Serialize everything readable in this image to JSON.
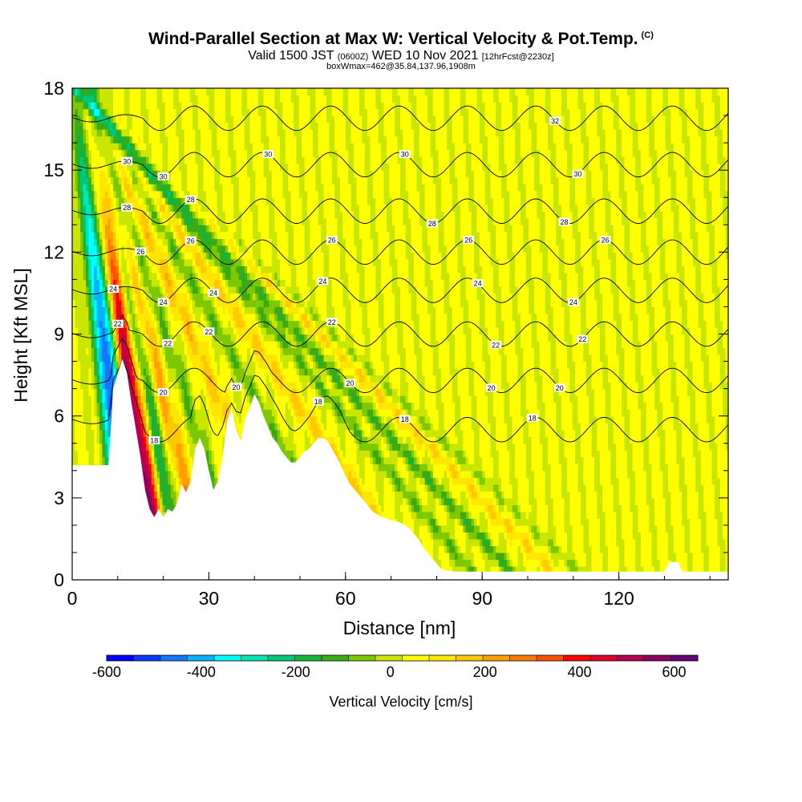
{
  "title": {
    "main": "Wind-Parallel Section at Max W: Vertical Velocity & Pot.Temp.",
    "copyright": "(C)",
    "valid_prefix": "Valid 1500 JST",
    "valid_utc": "(0600Z)",
    "valid_date": "WED 10 Nov 2021",
    "forecast": "[12hrFcst@2230z]",
    "box_info": "boxWmax=462@35.84,137.96,1908m"
  },
  "chart_data": {
    "type": "heatmap",
    "xlabel": "Distance [nm]",
    "ylabel": "Height [Kft MSL]",
    "xlim": [
      0,
      144
    ],
    "ylim": [
      0,
      18
    ],
    "x_ticks": [
      "0",
      "30",
      "60",
      "90",
      "120"
    ],
    "y_ticks": [
      "0",
      "3",
      "6",
      "9",
      "12",
      "15",
      "18"
    ],
    "colorbar": {
      "label": "Vertical Velocity [cm/s]",
      "range": [
        -600,
        650
      ],
      "tick_labels": [
        "-600",
        "-400",
        "-200",
        "0",
        "200",
        "400",
        "600"
      ],
      "colors": [
        "#0000ff",
        "#0a3cff",
        "#1478ff",
        "#00b4ff",
        "#00ffff",
        "#00e6b4",
        "#00c878",
        "#14b43c",
        "#3caa14",
        "#7dc800",
        "#c8e600",
        "#ffff00",
        "#ffe600",
        "#ffc800",
        "#ffa000",
        "#ff7800",
        "#ff5000",
        "#ff0000",
        "#dc0028",
        "#b40050",
        "#8c0064",
        "#640078"
      ]
    },
    "vertical_velocity_features": [
      {
        "name": "strong downdraft",
        "x_base": 13,
        "x_top": 2,
        "value": -600
      },
      {
        "name": "strong updraft",
        "x_base": 19.5,
        "x_top": 2,
        "value": 550
      },
      {
        "name": "moderate descent",
        "x_base": 24,
        "x_top": 4,
        "value": -250
      },
      {
        "name": "weak ascent",
        "x_base": 30,
        "x_top": 3,
        "value": 180
      },
      {
        "name": "weak descent",
        "x_base": 38,
        "x_top": 3,
        "value": -120
      },
      {
        "name": "weak ascent",
        "x_base": 49,
        "x_top": 3,
        "value": 130
      },
      {
        "name": "weak descent",
        "x_base": 62,
        "x_top": 3,
        "value": -120
      },
      {
        "name": "weak ascent",
        "x_base": 76,
        "x_top": 2,
        "value": 120
      },
      {
        "name": "weak descent",
        "x_base": 89,
        "x_top": 1,
        "value": -130
      },
      {
        "name": "weak descent",
        "x_base": 98,
        "x_top": 1,
        "value": -160
      },
      {
        "name": "weak ascent",
        "x_base": 107,
        "x_top": 2,
        "value": 100
      },
      {
        "name": "weak descent",
        "x_base": 113,
        "x_top": 1,
        "value": -80
      }
    ],
    "terrain_kft": {
      "x": [
        0,
        8,
        9,
        11,
        12,
        13,
        14,
        15,
        16,
        17,
        18,
        19,
        20,
        21,
        22,
        23,
        24,
        25,
        26,
        27,
        28,
        29,
        30,
        31,
        32,
        33,
        34,
        35,
        36,
        37,
        38,
        39,
        40,
        41,
        42,
        43,
        44,
        45,
        46,
        47,
        48,
        49,
        50,
        51,
        52,
        53,
        54,
        55,
        56,
        57,
        58,
        59,
        60,
        61,
        62,
        63,
        64,
        65,
        66,
        67,
        68,
        70,
        72,
        74,
        75,
        76,
        77,
        78,
        79,
        80,
        81,
        82,
        84,
        88,
        100,
        120,
        130,
        131,
        132,
        133,
        134,
        135,
        144
      ],
      "height": [
        4.2,
        4.2,
        7.0,
        8.1,
        7.6,
        6.5,
        5.5,
        4.5,
        3.3,
        2.6,
        2.3,
        2.6,
        2.3,
        2.6,
        2.5,
        2.8,
        3.5,
        3.2,
        3.6,
        4.8,
        5.2,
        4.8,
        4.0,
        3.3,
        3.6,
        4.5,
        5.8,
        6.3,
        5.5,
        5.1,
        5.9,
        6.3,
        6.8,
        6.5,
        6.0,
        5.6,
        5.2,
        5.0,
        4.7,
        4.5,
        4.3,
        4.3,
        4.5,
        4.7,
        4.8,
        5.0,
        5.2,
        5.2,
        5.1,
        4.8,
        4.5,
        4.2,
        3.8,
        3.5,
        3.3,
        3.1,
        2.9,
        2.7,
        2.5,
        2.4,
        2.3,
        2.2,
        2.1,
        1.9,
        1.7,
        1.5,
        1.2,
        1.0,
        0.8,
        0.6,
        0.4,
        0.35,
        0.3,
        0.3,
        0.3,
        0.3,
        0.3,
        0.65,
        0.65,
        0.65,
        0.3,
        0.3,
        0.3
      ]
    },
    "theta_contours": [
      {
        "label": "18",
        "base_kft": 5.5,
        "label_positions": [
          18,
          54,
          73,
          101
        ]
      },
      {
        "label": "20",
        "base_kft": 7.3,
        "label_positions": [
          20,
          36,
          61,
          92,
          107
        ]
      },
      {
        "label": "22",
        "base_kft": 9.0,
        "label_positions": [
          10,
          21,
          30,
          57,
          93,
          112
        ]
      },
      {
        "label": "24",
        "base_kft": 10.6,
        "label_positions": [
          9,
          20,
          31,
          55,
          89,
          110
        ]
      },
      {
        "label": "26",
        "base_kft": 12.0,
        "label_positions": [
          15,
          26,
          57,
          87,
          117
        ]
      },
      {
        "label": "28",
        "base_kft": 13.5,
        "label_positions": [
          12,
          26,
          79,
          108
        ]
      },
      {
        "label": "30",
        "base_kft": 15.2,
        "label_positions": [
          12,
          20,
          43,
          73,
          111
        ]
      },
      {
        "label": "32",
        "base_kft": 16.9,
        "label_positions": [
          106
        ]
      }
    ]
  }
}
